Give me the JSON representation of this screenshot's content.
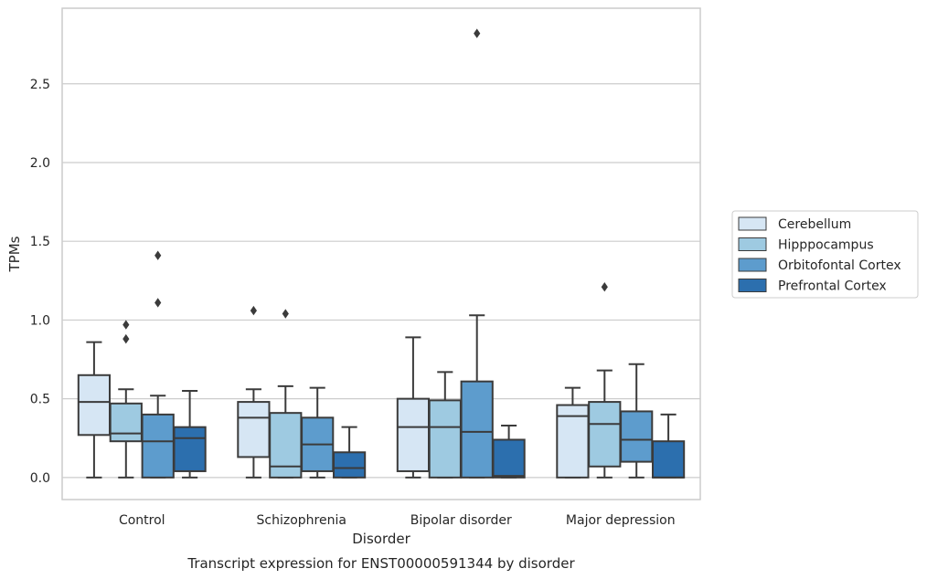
{
  "caption": "Transcript expression for ENST00000591344 by disorder",
  "chart_data": {
    "type": "box",
    "xlabel": "Disorder",
    "ylabel": "TPMs",
    "ylim": [
      -0.14,
      2.98
    ],
    "yticks": [
      "0.0",
      "0.5",
      "1.0",
      "1.5",
      "2.0",
      "2.5"
    ],
    "ytick_values": [
      0.0,
      0.5,
      1.0,
      1.5,
      2.0,
      2.5
    ],
    "grid": "horizontal",
    "legend_position": "right",
    "categories": [
      "Control",
      "Schizophrenia",
      "Bipolar disorder",
      "Major depression"
    ],
    "series": [
      {
        "name": "Cerebellum",
        "color": "#d6e6f4",
        "boxes": [
          {
            "whisker_low": 0.0,
            "q1": 0.27,
            "median": 0.48,
            "q3": 0.65,
            "whisker_high": 0.86,
            "outliers": []
          },
          {
            "whisker_low": 0.0,
            "q1": 0.13,
            "median": 0.38,
            "q3": 0.48,
            "whisker_high": 0.56,
            "outliers": [
              1.06
            ]
          },
          {
            "whisker_low": 0.0,
            "q1": 0.04,
            "median": 0.32,
            "q3": 0.5,
            "whisker_high": 0.89,
            "outliers": []
          },
          {
            "whisker_low": 0.0,
            "q1": 0.0,
            "median": 0.39,
            "q3": 0.46,
            "whisker_high": 0.57,
            "outliers": []
          }
        ]
      },
      {
        "name": "Hipppocampus",
        "color": "#9ecae1",
        "boxes": [
          {
            "whisker_low": 0.0,
            "q1": 0.23,
            "median": 0.28,
            "q3": 0.47,
            "whisker_high": 0.56,
            "outliers": [
              0.88,
              0.97
            ]
          },
          {
            "whisker_low": 0.0,
            "q1": 0.0,
            "median": 0.07,
            "q3": 0.41,
            "whisker_high": 0.58,
            "outliers": [
              1.04
            ]
          },
          {
            "whisker_low": 0.0,
            "q1": 0.0,
            "median": 0.32,
            "q3": 0.49,
            "whisker_high": 0.67,
            "outliers": []
          },
          {
            "whisker_low": 0.0,
            "q1": 0.07,
            "median": 0.34,
            "q3": 0.48,
            "whisker_high": 0.68,
            "outliers": [
              1.21
            ]
          }
        ]
      },
      {
        "name": "Orbitofontal Cortex",
        "color": "#5d9ccd",
        "boxes": [
          {
            "whisker_low": 0.0,
            "q1": 0.0,
            "median": 0.23,
            "q3": 0.4,
            "whisker_high": 0.52,
            "outliers": [
              1.11,
              1.41
            ]
          },
          {
            "whisker_low": 0.0,
            "q1": 0.04,
            "median": 0.21,
            "q3": 0.38,
            "whisker_high": 0.57,
            "outliers": []
          },
          {
            "whisker_low": 0.0,
            "q1": 0.0,
            "median": 0.29,
            "q3": 0.61,
            "whisker_high": 1.03,
            "outliers": [
              2.82
            ]
          },
          {
            "whisker_low": 0.0,
            "q1": 0.1,
            "median": 0.24,
            "q3": 0.42,
            "whisker_high": 0.72,
            "outliers": []
          }
        ]
      },
      {
        "name": "Prefrontal Cortex",
        "color": "#2c6fae",
        "boxes": [
          {
            "whisker_low": 0.0,
            "q1": 0.04,
            "median": 0.25,
            "q3": 0.32,
            "whisker_high": 0.55,
            "outliers": []
          },
          {
            "whisker_low": 0.0,
            "q1": 0.0,
            "median": 0.06,
            "q3": 0.16,
            "whisker_high": 0.32,
            "outliers": []
          },
          {
            "whisker_low": 0.0,
            "q1": 0.0,
            "median": 0.01,
            "q3": 0.24,
            "whisker_high": 0.33,
            "outliers": []
          },
          {
            "whisker_low": 0.0,
            "q1": 0.0,
            "median": 0.0,
            "q3": 0.23,
            "whisker_high": 0.4,
            "outliers": []
          }
        ]
      }
    ]
  },
  "style": {
    "edge_color": "#3b3b3b",
    "grid_color": "#cccccc",
    "frame_color": "#cccccc"
  }
}
